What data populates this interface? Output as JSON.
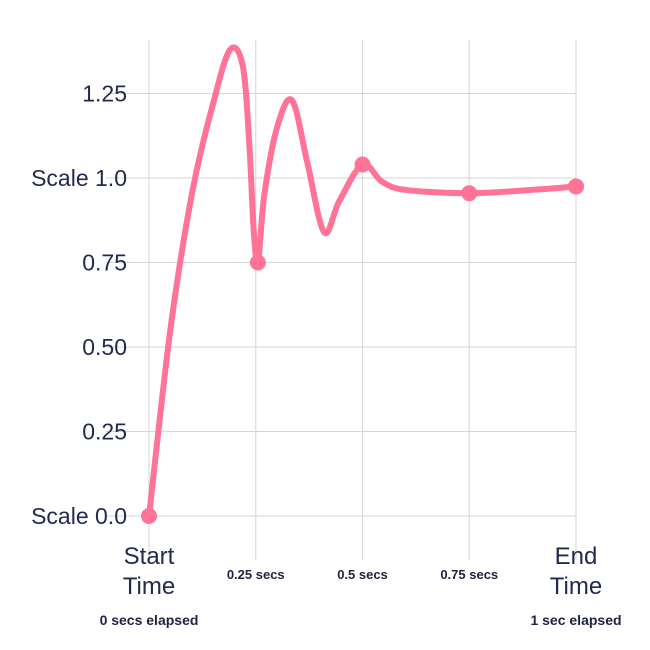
{
  "chart_data": {
    "type": "line",
    "title": "",
    "xlabel": "",
    "ylabel": "",
    "xlim": [
      0,
      1
    ],
    "ylim": [
      0,
      1.4
    ],
    "grid": true,
    "series_color": "#ff7496",
    "y_ticks": [
      {
        "value": 0,
        "label": "Scale 0.0"
      },
      {
        "value": 0.25,
        "label": "0.25"
      },
      {
        "value": 0.5,
        "label": "0.50"
      },
      {
        "value": 0.75,
        "label": "0.75"
      },
      {
        "value": 1.0,
        "label": "Scale 1.0"
      },
      {
        "value": 1.25,
        "label": "1.25"
      }
    ],
    "x_ticks": [
      {
        "value": 0,
        "label_lines": [
          "Start",
          "Time"
        ],
        "style": "major",
        "sublabel": "0 secs elapsed"
      },
      {
        "value": 0.25,
        "label_lines": [
          "0.25 secs"
        ],
        "style": "minor",
        "sublabel": ""
      },
      {
        "value": 0.5,
        "label_lines": [
          "0.5 secs"
        ],
        "style": "minor",
        "sublabel": ""
      },
      {
        "value": 0.75,
        "label_lines": [
          "0.75 secs"
        ],
        "style": "minor",
        "sublabel": ""
      },
      {
        "value": 1.0,
        "label_lines": [
          "End",
          "Time"
        ],
        "style": "major",
        "sublabel": "1 sec elapsed"
      }
    ],
    "curve": [
      {
        "x": 0.0,
        "y": 0.0
      },
      {
        "x": 0.05,
        "y": 0.55
      },
      {
        "x": 0.1,
        "y": 0.95
      },
      {
        "x": 0.15,
        "y": 1.22
      },
      {
        "x": 0.19,
        "y": 1.38
      },
      {
        "x": 0.22,
        "y": 1.33
      },
      {
        "x": 0.235,
        "y": 1.1
      },
      {
        "x": 0.245,
        "y": 0.85
      },
      {
        "x": 0.255,
        "y": 0.75
      },
      {
        "x": 0.27,
        "y": 0.95
      },
      {
        "x": 0.3,
        "y": 1.15
      },
      {
        "x": 0.335,
        "y": 1.23
      },
      {
        "x": 0.37,
        "y": 1.05
      },
      {
        "x": 0.41,
        "y": 0.84
      },
      {
        "x": 0.445,
        "y": 0.93
      },
      {
        "x": 0.5,
        "y": 1.04
      },
      {
        "x": 0.545,
        "y": 0.99
      },
      {
        "x": 0.6,
        "y": 0.965
      },
      {
        "x": 0.75,
        "y": 0.955
      },
      {
        "x": 0.9,
        "y": 0.965
      },
      {
        "x": 1.0,
        "y": 0.975
      }
    ],
    "markers": [
      {
        "x": 0.0,
        "y": 0.0
      },
      {
        "x": 0.255,
        "y": 0.75
      },
      {
        "x": 0.5,
        "y": 1.04
      },
      {
        "x": 0.75,
        "y": 0.955
      },
      {
        "x": 1.0,
        "y": 0.975
      }
    ]
  }
}
